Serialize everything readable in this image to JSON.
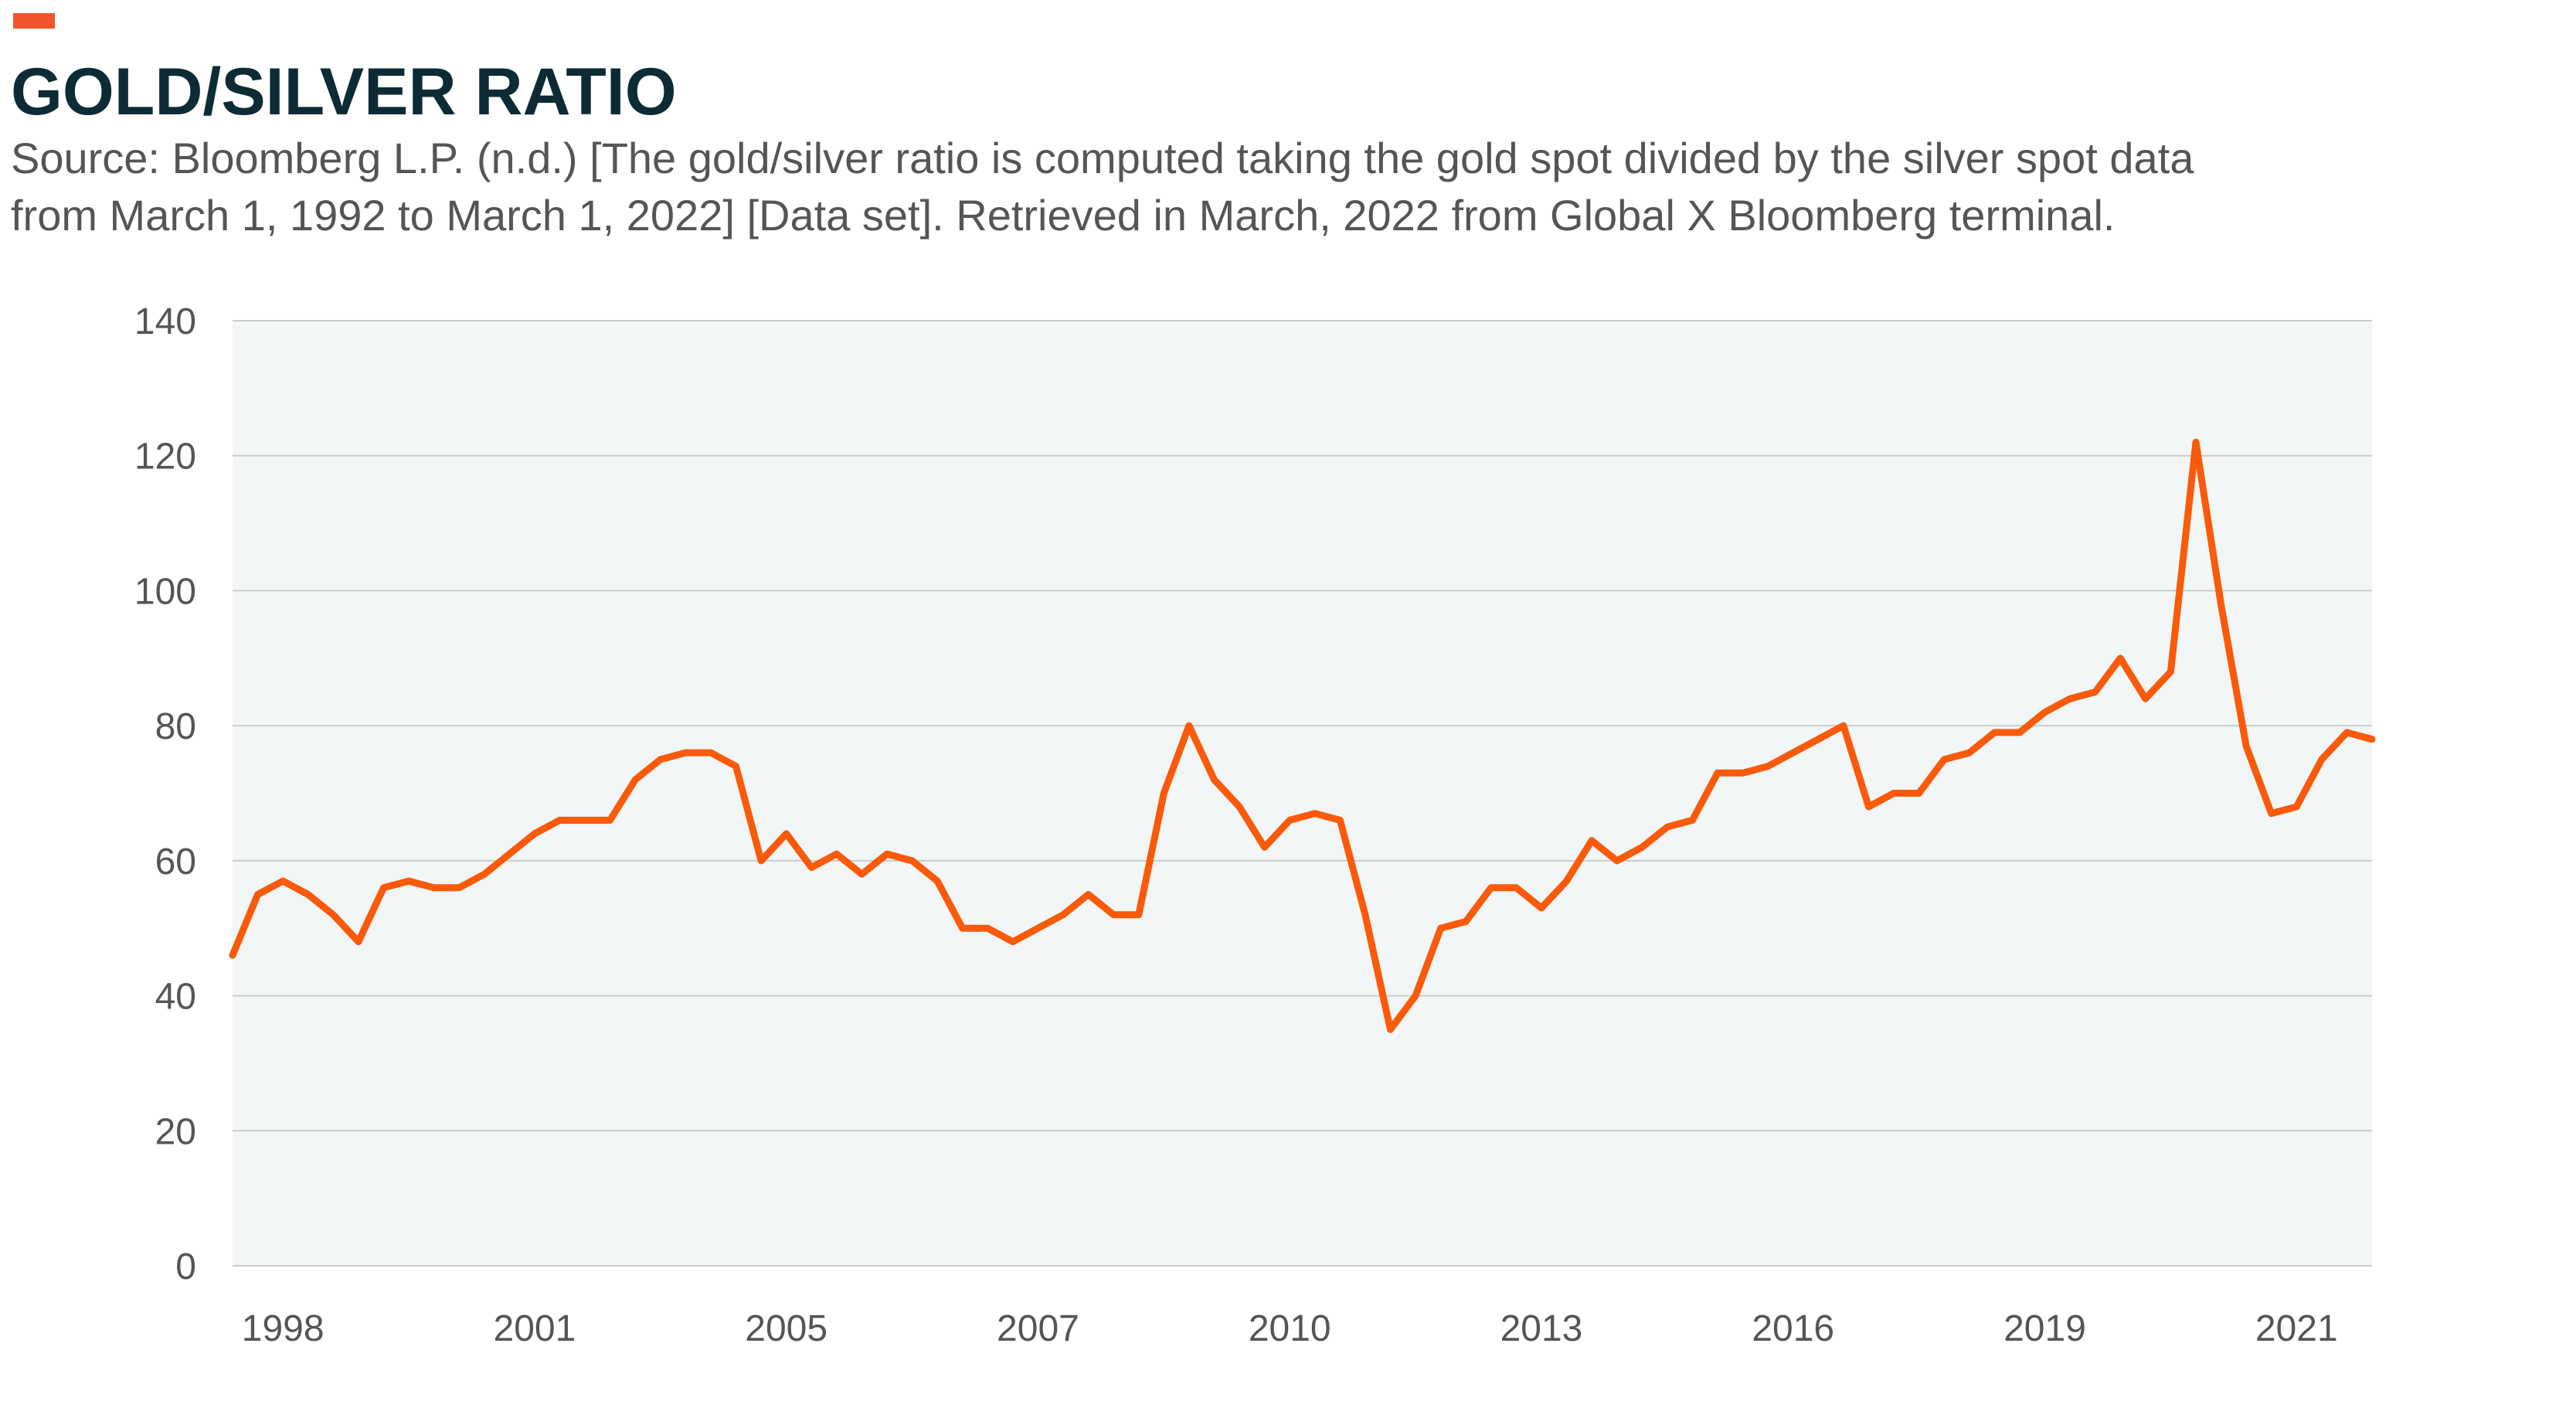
{
  "chart_data": {
    "type": "line",
    "title": "GOLD/SILVER RATIO",
    "subtitle": [
      "Source: Bloomberg L.P. (n.d.) [The gold/silver ratio is computed taking the gold spot divided by the silver spot data",
      "from March 1, 1992 to March 1, 2022] [Data set]. Retrieved in March, 2022 from Global X Bloomberg terminal."
    ],
    "categories": [
      null,
      null,
      "1998",
      null,
      null,
      null,
      null,
      null,
      null,
      null,
      null,
      null,
      "2001",
      null,
      null,
      null,
      null,
      null,
      null,
      null,
      null,
      null,
      "2005",
      null,
      null,
      null,
      null,
      null,
      null,
      null,
      null,
      null,
      "2007",
      null,
      null,
      null,
      null,
      null,
      null,
      null,
      null,
      null,
      "2010",
      null,
      null,
      null,
      null,
      null,
      null,
      null,
      null,
      null,
      "2013",
      null,
      null,
      null,
      null,
      null,
      null,
      null,
      null,
      null,
      "2016",
      null,
      null,
      null,
      null,
      null,
      null,
      null,
      null,
      null,
      "2019",
      null,
      null,
      null,
      null,
      null,
      null,
      null,
      null,
      null,
      "2021",
      null,
      null,
      null
    ],
    "values": [
      46,
      55,
      57,
      55,
      52,
      48,
      56,
      57,
      56,
      56,
      58,
      61,
      64,
      66,
      66,
      66,
      72,
      75,
      76,
      76,
      74,
      60,
      64,
      59,
      61,
      58,
      61,
      60,
      57,
      50,
      50,
      48,
      50,
      52,
      55,
      52,
      52,
      70,
      80,
      72,
      68,
      62,
      66,
      67,
      66,
      52,
      35,
      40,
      50,
      51,
      56,
      56,
      53,
      57,
      63,
      60,
      62,
      65,
      66,
      73,
      73,
      74,
      76,
      78,
      80,
      68,
      70,
      70,
      75,
      76,
      79,
      79,
      82,
      84,
      85,
      90,
      84,
      88,
      122,
      98,
      77,
      67,
      68,
      75,
      79,
      78
    ],
    "color": "#fa5a0a",
    "ylim": [
      0,
      140
    ],
    "yticks": [
      0,
      20,
      40,
      60,
      80,
      100,
      120,
      140
    ],
    "grid": true
  }
}
